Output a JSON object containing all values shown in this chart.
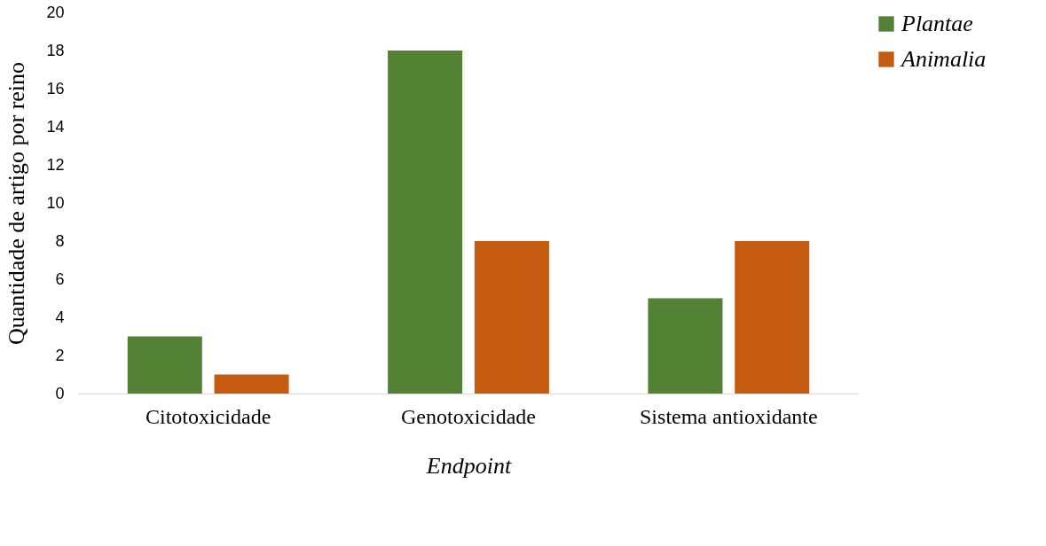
{
  "chart_data": {
    "type": "bar",
    "xlabel": "Endpoint",
    "ylabel": "Quantidade de artigo por reino",
    "categories": [
      "Citotoxicidade",
      "Genotoxicidade",
      "Sistema antioxidante"
    ],
    "series": [
      {
        "name": "Plantae",
        "color": "#548235",
        "values": [
          3,
          18,
          5
        ]
      },
      {
        "name": "Animalia",
        "color": "#c55a11",
        "values": [
          1,
          8,
          8
        ]
      }
    ],
    "ylim": [
      0,
      20
    ],
    "yticks": [
      0,
      2,
      4,
      6,
      8,
      10,
      12,
      14,
      16,
      18,
      20
    ],
    "grid": false,
    "legend": "right"
  }
}
